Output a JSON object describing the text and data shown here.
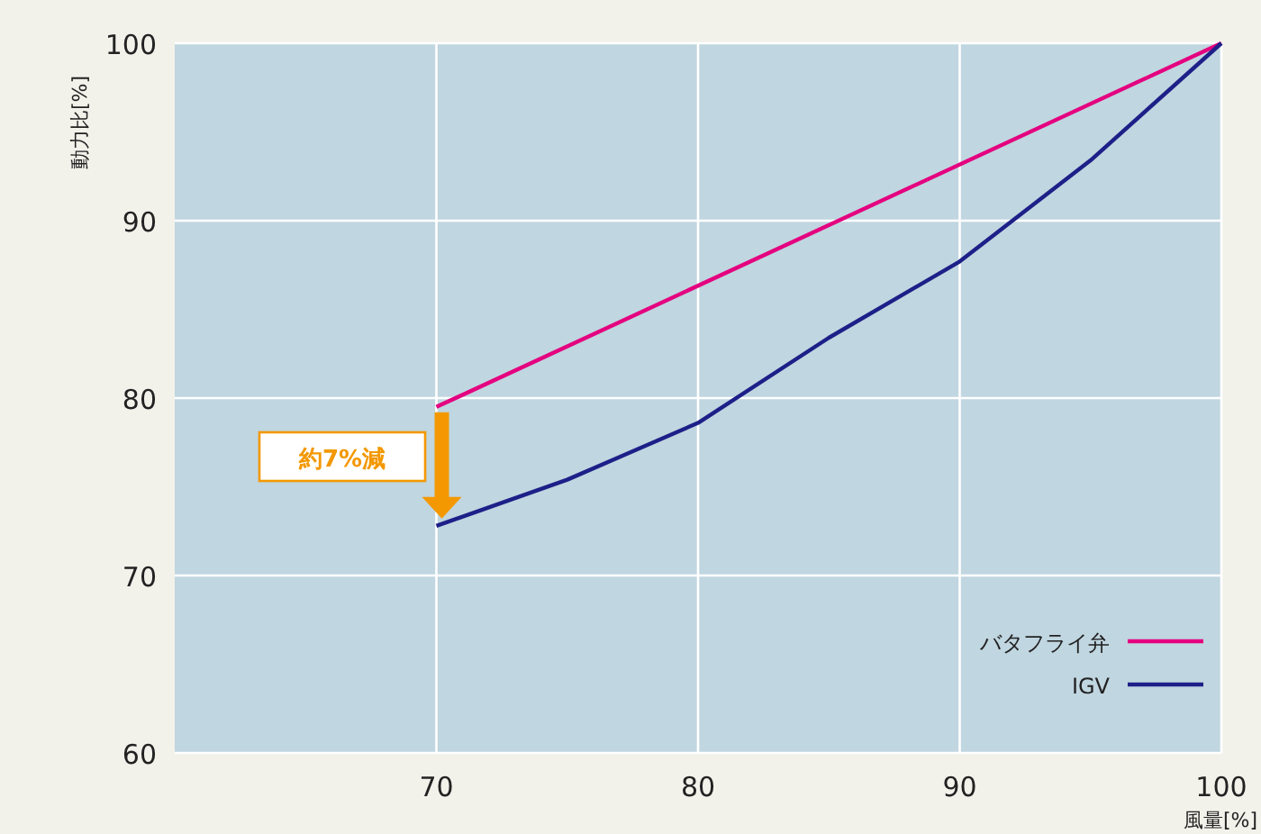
{
  "chart_data": {
    "type": "line",
    "xlabel": "風量[%]",
    "ylabel": "動力比[%]",
    "xlim": [
      60,
      100
    ],
    "ylim": [
      60,
      100
    ],
    "xticks": [
      70,
      80,
      90,
      100
    ],
    "yticks": [
      60,
      70,
      80,
      90,
      100
    ],
    "grid": true,
    "legend": "bottom right",
    "line_style": "solid",
    "marker": "none",
    "annotations": [
      "約7%減"
    ],
    "series": [
      {
        "name": "バタフライ弁",
        "color": "#e4007f",
        "x": [
          70,
          100
        ],
        "values": [
          79.5,
          100
        ]
      },
      {
        "name": "IGV",
        "color": "#1d2088",
        "x": [
          70,
          75,
          80,
          85,
          90,
          95,
          100
        ],
        "values": [
          72.8,
          75.4,
          78.6,
          83.4,
          87.7,
          93.4,
          100
        ]
      }
    ]
  }
}
